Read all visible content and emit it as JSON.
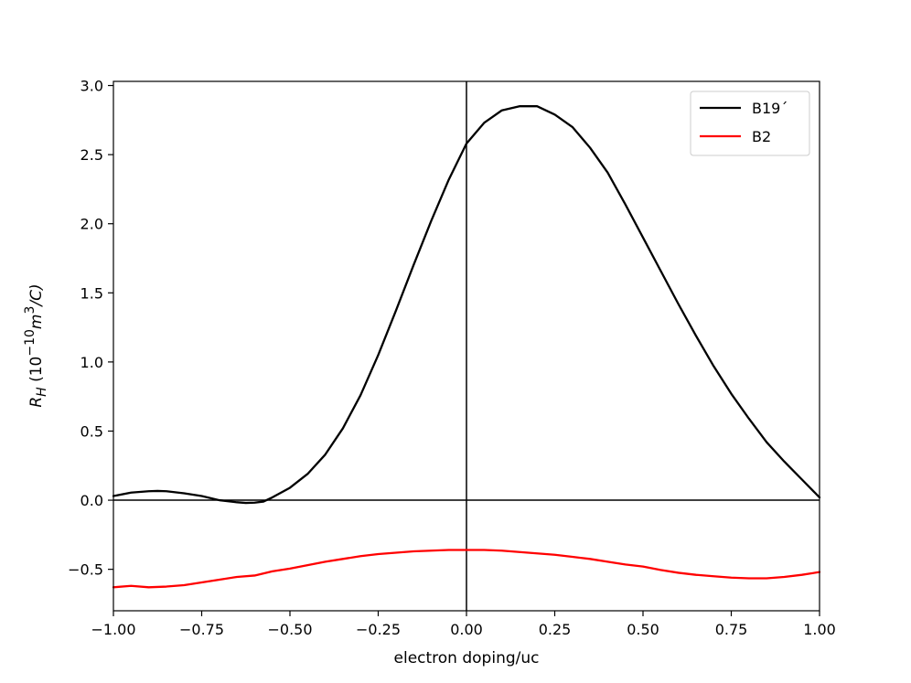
{
  "chart_data": {
    "type": "line",
    "xlabel": "electron doping/uc",
    "ylabel": {
      "main": "R",
      "sub": "H",
      "open": " (10",
      "exp": "−10",
      "unit": "m",
      "unit_exp": "3",
      "close": "/C)"
    },
    "xlim": [
      -1.0,
      1.0
    ],
    "ylim": [
      -0.8,
      3.03
    ],
    "xticks": [
      -1.0,
      -0.75,
      -0.5,
      -0.25,
      0.0,
      0.25,
      0.5,
      0.75,
      1.0
    ],
    "xtick_labels": [
      "−1.00",
      "−0.75",
      "−0.50",
      "−0.25",
      "0.00",
      "0.25",
      "0.50",
      "0.75",
      "1.00"
    ],
    "yticks": [
      -0.5,
      0.0,
      0.5,
      1.0,
      1.5,
      2.0,
      2.5,
      3.0
    ],
    "ytick_labels": [
      "−0.5",
      "0.0",
      "0.5",
      "1.0",
      "1.5",
      "2.0",
      "2.5",
      "3.0"
    ],
    "grid": false,
    "reference_lines": {
      "x": 0,
      "y": 0
    },
    "legend": {
      "position": "top-right",
      "entries": [
        "B19´",
        "B2"
      ]
    },
    "series": [
      {
        "name": "B19´",
        "color": "#000000",
        "x": [
          -1.0,
          -0.95,
          -0.9,
          -0.875,
          -0.85,
          -0.8,
          -0.75,
          -0.7,
          -0.65,
          -0.625,
          -0.6,
          -0.575,
          -0.55,
          -0.5,
          -0.45,
          -0.4,
          -0.35,
          -0.3,
          -0.25,
          -0.2,
          -0.15,
          -0.1,
          -0.05,
          0.0,
          0.05,
          0.1,
          0.15,
          0.2,
          0.25,
          0.3,
          0.35,
          0.4,
          0.45,
          0.5,
          0.55,
          0.6,
          0.65,
          0.7,
          0.75,
          0.8,
          0.85,
          0.9,
          0.95,
          1.0
        ],
        "y": [
          0.03,
          0.055,
          0.065,
          0.067,
          0.065,
          0.05,
          0.03,
          0.0,
          -0.015,
          -0.02,
          -0.018,
          -0.01,
          0.02,
          0.09,
          0.19,
          0.33,
          0.52,
          0.76,
          1.05,
          1.37,
          1.7,
          2.02,
          2.32,
          2.58,
          2.73,
          2.82,
          2.85,
          2.85,
          2.79,
          2.7,
          2.55,
          2.37,
          2.14,
          1.9,
          1.66,
          1.42,
          1.19,
          0.97,
          0.77,
          0.59,
          0.42,
          0.28,
          0.15,
          0.02
        ]
      },
      {
        "name": "B2",
        "color": "#ff0000",
        "x": [
          -1.0,
          -0.95,
          -0.9,
          -0.85,
          -0.8,
          -0.75,
          -0.7,
          -0.65,
          -0.6,
          -0.55,
          -0.5,
          -0.45,
          -0.4,
          -0.35,
          -0.3,
          -0.25,
          -0.2,
          -0.15,
          -0.1,
          -0.05,
          0.0,
          0.05,
          0.1,
          0.15,
          0.2,
          0.25,
          0.3,
          0.35,
          0.4,
          0.45,
          0.5,
          0.55,
          0.6,
          0.65,
          0.7,
          0.75,
          0.8,
          0.85,
          0.9,
          0.95,
          1.0
        ],
        "y": [
          -0.63,
          -0.62,
          -0.63,
          -0.625,
          -0.615,
          -0.595,
          -0.575,
          -0.555,
          -0.545,
          -0.515,
          -0.495,
          -0.47,
          -0.445,
          -0.425,
          -0.405,
          -0.39,
          -0.38,
          -0.37,
          -0.365,
          -0.36,
          -0.36,
          -0.36,
          -0.365,
          -0.375,
          -0.385,
          -0.395,
          -0.41,
          -0.425,
          -0.445,
          -0.465,
          -0.48,
          -0.505,
          -0.525,
          -0.54,
          -0.55,
          -0.56,
          -0.565,
          -0.565,
          -0.555,
          -0.54,
          -0.52
        ]
      }
    ]
  }
}
